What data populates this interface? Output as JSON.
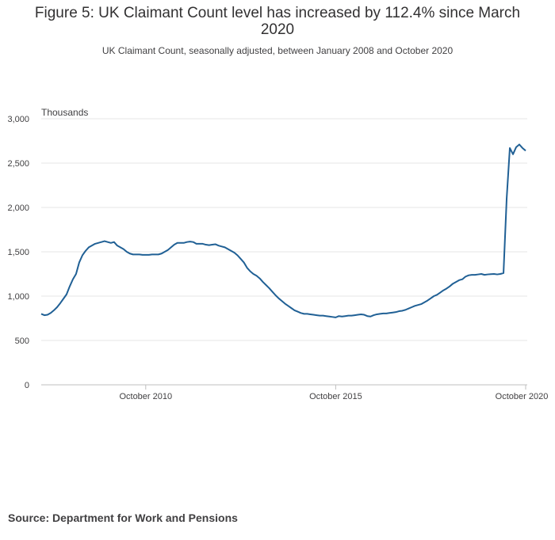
{
  "title": "Figure 5: UK Claimant Count level has increased by 112.4% since March 2020",
  "subtitle": "UK Claimant Count, seasonally adjusted, between January 2008 and October 2020",
  "source": "Source: Department for Work and Pensions",
  "colors": {
    "line": "#206095",
    "grid": "#e6e6e6",
    "axis": "#bfbfbf",
    "text": "#323132"
  },
  "chart_data": {
    "type": "line",
    "ylabel": "Thousands",
    "xlabel": "",
    "ylim": [
      0,
      3000
    ],
    "yticks": [
      0,
      500,
      1000,
      1500,
      2000,
      2500,
      3000
    ],
    "ytick_labels": [
      "0",
      "500",
      "1,000",
      "1,500",
      "2,000",
      "2,500",
      "3,000"
    ],
    "xticks": [
      {
        "label": "October 2010",
        "value": "2010-10"
      },
      {
        "label": "October 2015",
        "value": "2015-10"
      },
      {
        "label": "October 2020",
        "value": "2020-10"
      }
    ],
    "grid": true,
    "series": [
      {
        "values": [
          [
            "2008-01",
            800
          ],
          [
            "2008-02",
            785
          ],
          [
            "2008-03",
            790
          ],
          [
            "2008-04",
            810
          ],
          [
            "2008-05",
            840
          ],
          [
            "2008-06",
            875
          ],
          [
            "2008-07",
            920
          ],
          [
            "2008-08",
            970
          ],
          [
            "2008-09",
            1020
          ],
          [
            "2008-10",
            1110
          ],
          [
            "2008-11",
            1190
          ],
          [
            "2008-12",
            1250
          ],
          [
            "2009-01",
            1380
          ],
          [
            "2009-02",
            1460
          ],
          [
            "2009-03",
            1510
          ],
          [
            "2009-04",
            1550
          ],
          [
            "2009-05",
            1570
          ],
          [
            "2009-06",
            1590
          ],
          [
            "2009-07",
            1600
          ],
          [
            "2009-08",
            1610
          ],
          [
            "2009-09",
            1620
          ],
          [
            "2009-10",
            1610
          ],
          [
            "2009-11",
            1600
          ],
          [
            "2009-12",
            1610
          ],
          [
            "2010-01",
            1570
          ],
          [
            "2010-02",
            1550
          ],
          [
            "2010-03",
            1530
          ],
          [
            "2010-04",
            1500
          ],
          [
            "2010-05",
            1480
          ],
          [
            "2010-06",
            1470
          ],
          [
            "2010-07",
            1470
          ],
          [
            "2010-08",
            1470
          ],
          [
            "2010-09",
            1465
          ],
          [
            "2010-10",
            1465
          ],
          [
            "2010-11",
            1465
          ],
          [
            "2010-12",
            1470
          ],
          [
            "2011-01",
            1470
          ],
          [
            "2011-02",
            1470
          ],
          [
            "2011-03",
            1480
          ],
          [
            "2011-04",
            1500
          ],
          [
            "2011-05",
            1520
          ],
          [
            "2011-06",
            1550
          ],
          [
            "2011-07",
            1580
          ],
          [
            "2011-08",
            1600
          ],
          [
            "2011-09",
            1600
          ],
          [
            "2011-10",
            1600
          ],
          [
            "2011-11",
            1610
          ],
          [
            "2011-12",
            1615
          ],
          [
            "2012-01",
            1610
          ],
          [
            "2012-02",
            1590
          ],
          [
            "2012-03",
            1590
          ],
          [
            "2012-04",
            1590
          ],
          [
            "2012-05",
            1580
          ],
          [
            "2012-06",
            1575
          ],
          [
            "2012-07",
            1580
          ],
          [
            "2012-08",
            1585
          ],
          [
            "2012-09",
            1570
          ],
          [
            "2012-10",
            1560
          ],
          [
            "2012-11",
            1550
          ],
          [
            "2012-12",
            1530
          ],
          [
            "2013-01",
            1510
          ],
          [
            "2013-02",
            1490
          ],
          [
            "2013-03",
            1460
          ],
          [
            "2013-04",
            1420
          ],
          [
            "2013-05",
            1380
          ],
          [
            "2013-06",
            1320
          ],
          [
            "2013-07",
            1280
          ],
          [
            "2013-08",
            1250
          ],
          [
            "2013-09",
            1230
          ],
          [
            "2013-10",
            1200
          ],
          [
            "2013-11",
            1160
          ],
          [
            "2013-12",
            1125
          ],
          [
            "2014-01",
            1090
          ],
          [
            "2014-02",
            1050
          ],
          [
            "2014-03",
            1010
          ],
          [
            "2014-04",
            975
          ],
          [
            "2014-05",
            945
          ],
          [
            "2014-06",
            915
          ],
          [
            "2014-07",
            890
          ],
          [
            "2014-08",
            865
          ],
          [
            "2014-09",
            840
          ],
          [
            "2014-10",
            825
          ],
          [
            "2014-11",
            810
          ],
          [
            "2014-12",
            800
          ],
          [
            "2015-01",
            800
          ],
          [
            "2015-02",
            795
          ],
          [
            "2015-03",
            790
          ],
          [
            "2015-04",
            785
          ],
          [
            "2015-05",
            780
          ],
          [
            "2015-06",
            780
          ],
          [
            "2015-07",
            775
          ],
          [
            "2015-08",
            770
          ],
          [
            "2015-09",
            765
          ],
          [
            "2015-10",
            760
          ],
          [
            "2015-11",
            775
          ],
          [
            "2015-12",
            770
          ],
          [
            "2016-01",
            775
          ],
          [
            "2016-02",
            780
          ],
          [
            "2016-03",
            780
          ],
          [
            "2016-04",
            785
          ],
          [
            "2016-05",
            790
          ],
          [
            "2016-06",
            795
          ],
          [
            "2016-07",
            790
          ],
          [
            "2016-08",
            775
          ],
          [
            "2016-09",
            770
          ],
          [
            "2016-10",
            785
          ],
          [
            "2016-11",
            795
          ],
          [
            "2016-12",
            800
          ],
          [
            "2017-01",
            805
          ],
          [
            "2017-02",
            805
          ],
          [
            "2017-03",
            810
          ],
          [
            "2017-04",
            815
          ],
          [
            "2017-05",
            820
          ],
          [
            "2017-06",
            830
          ],
          [
            "2017-07",
            835
          ],
          [
            "2017-08",
            845
          ],
          [
            "2017-09",
            860
          ],
          [
            "2017-10",
            875
          ],
          [
            "2017-11",
            890
          ],
          [
            "2017-12",
            900
          ],
          [
            "2018-01",
            910
          ],
          [
            "2018-02",
            930
          ],
          [
            "2018-03",
            950
          ],
          [
            "2018-04",
            975
          ],
          [
            "2018-05",
            1000
          ],
          [
            "2018-06",
            1015
          ],
          [
            "2018-07",
            1040
          ],
          [
            "2018-08",
            1065
          ],
          [
            "2018-09",
            1085
          ],
          [
            "2018-10",
            1110
          ],
          [
            "2018-11",
            1140
          ],
          [
            "2018-12",
            1160
          ],
          [
            "2019-01",
            1180
          ],
          [
            "2019-02",
            1190
          ],
          [
            "2019-03",
            1220
          ],
          [
            "2019-04",
            1235
          ],
          [
            "2019-05",
            1240
          ],
          [
            "2019-06",
            1240
          ],
          [
            "2019-07",
            1245
          ],
          [
            "2019-08",
            1250
          ],
          [
            "2019-09",
            1240
          ],
          [
            "2019-10",
            1245
          ],
          [
            "2019-11",
            1248
          ],
          [
            "2019-12",
            1250
          ],
          [
            "2020-01",
            1245
          ],
          [
            "2020-02",
            1250
          ],
          [
            "2020-03",
            1260
          ],
          [
            "2020-04",
            2100
          ],
          [
            "2020-05",
            2670
          ],
          [
            "2020-06",
            2600
          ],
          [
            "2020-07",
            2680
          ],
          [
            "2020-08",
            2710
          ],
          [
            "2020-09",
            2670
          ],
          [
            "2020-10",
            2640
          ]
        ]
      }
    ]
  }
}
